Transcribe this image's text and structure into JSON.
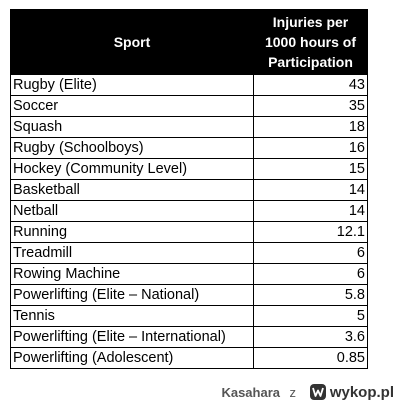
{
  "table": {
    "headers": [
      "Sport",
      "Injuries per 1000 hours of Participation"
    ],
    "header_lines": [
      "Injuries per",
      "1000 hours of",
      "Participation"
    ],
    "rows": [
      {
        "sport": "Rugby (Elite)",
        "injuries": "43"
      },
      {
        "sport": "Soccer",
        "injuries": "35"
      },
      {
        "sport": "Squash",
        "injuries": "18"
      },
      {
        "sport": "Rugby (Schoolboys)",
        "injuries": "16"
      },
      {
        "sport": "Hockey (Community Level)",
        "injuries": "15"
      },
      {
        "sport": "Basketball",
        "injuries": "14"
      },
      {
        "sport": "Netball",
        "injuries": "14"
      },
      {
        "sport": "Running",
        "injuries": "12.1"
      },
      {
        "sport": "Treadmill",
        "injuries": "6"
      },
      {
        "sport": "Rowing Machine",
        "injuries": "6"
      },
      {
        "sport": "Powerlifting (Elite – National)",
        "injuries": "5.8"
      },
      {
        "sport": "Tennis",
        "injuries": "5"
      },
      {
        "sport": "Powerlifting (Elite – International)",
        "injuries": "3.6"
      },
      {
        "sport": "Powerlifting (Adolescent)",
        "injuries": "0.85"
      }
    ]
  },
  "footer": {
    "user": "Kasahara",
    "separator": "z",
    "site": "wykop.pl",
    "logo_icon": "wykop-logo-icon"
  },
  "colors": {
    "header_bg": "#000000",
    "header_text": "#ffffff",
    "cell_text": "#000000",
    "border": "#000000"
  }
}
